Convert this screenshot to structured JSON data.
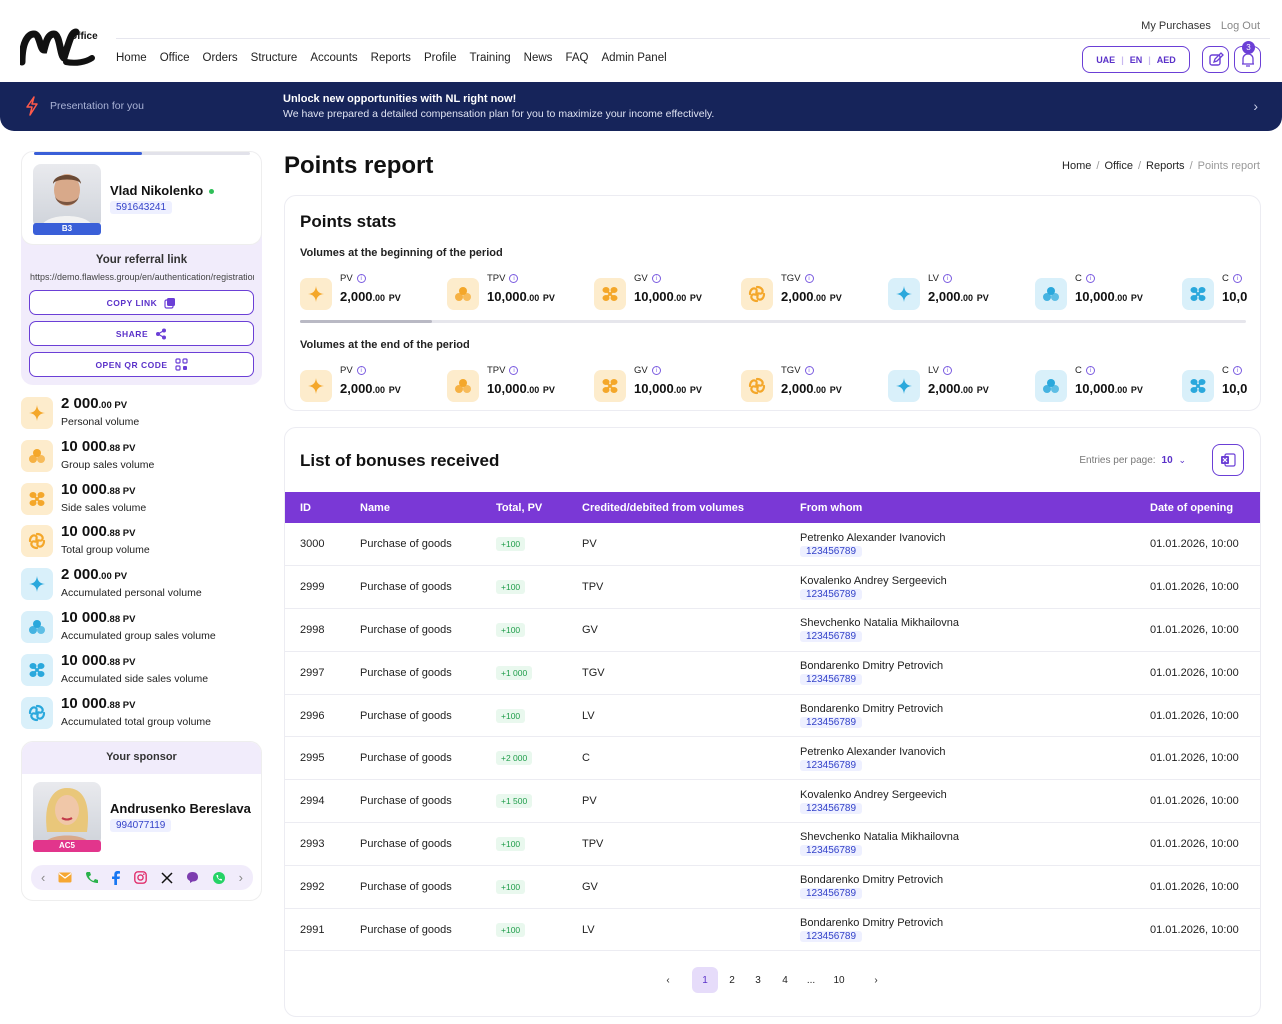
{
  "header": {
    "logo_text": "office",
    "top_links": [
      "My Purchases",
      "Log Out"
    ],
    "nav": [
      "Home",
      "Office",
      "Orders",
      "Structure",
      "Accounts",
      "Reports",
      "Profile",
      "Training",
      "News",
      "FAQ",
      "Admin Panel"
    ],
    "region": "UAE",
    "language": "EN",
    "currency": "AED",
    "notifications_count": "3"
  },
  "banner": {
    "presentation": "Presentation for you",
    "title": "Unlock new opportunities with NL right now!",
    "subtitle": "We have prepared a detailed compensation plan for you to maximize your income effectively."
  },
  "profile": {
    "name": "Vlad Nikolenko",
    "id": "591643241",
    "rank": "B3",
    "rank_color": "#3a5fd8",
    "progress": 0.5,
    "referral_label": "Your referral link",
    "referral_url": "https://demo.flawless.group/en/authentication/registration",
    "copy_label": "COPY LINK",
    "share_label": "SHARE",
    "qr_label": "OPEN QR CODE"
  },
  "volumes": [
    {
      "value": "2 000",
      "dec": ".00 PV",
      "label": "Personal volume",
      "icon": "sparkle-icon",
      "bg": "#fdeccc",
      "fg": "#f4a72a"
    },
    {
      "value": "10 000",
      "dec": ".88 PV",
      "label": "Group sales volume",
      "icon": "group-icon",
      "bg": "#fdeccc",
      "fg": "#f4a72a"
    },
    {
      "value": "10 000",
      "dec": ".88 PV",
      "label": "Side sales volume",
      "icon": "propeller-icon",
      "bg": "#fdeccc",
      "fg": "#f4a72a"
    },
    {
      "value": "10 000",
      "dec": ".88 PV",
      "label": "Total group volume",
      "icon": "swirl-icon",
      "bg": "#fdeccc",
      "fg": "#f4a72a"
    },
    {
      "value": "2 000",
      "dec": ".00 PV",
      "label": "Accumulated personal volume",
      "icon": "sparkle-icon",
      "bg": "#d9f0fa",
      "fg": "#2aa8dc"
    },
    {
      "value": "10 000",
      "dec": ".88 PV",
      "label": "Accumulated group sales volume",
      "icon": "group-icon",
      "bg": "#d9f0fa",
      "fg": "#2aa8dc"
    },
    {
      "value": "10 000",
      "dec": ".88 PV",
      "label": "Accumulated side sales volume",
      "icon": "propeller-icon",
      "bg": "#d9f0fa",
      "fg": "#2aa8dc"
    },
    {
      "value": "10 000",
      "dec": ".88 PV",
      "label": "Accumulated total group volume",
      "icon": "swirl-icon",
      "bg": "#d9f0fa",
      "fg": "#2aa8dc"
    }
  ],
  "sponsor": {
    "heading": "Your sponsor",
    "name": "Andrusenko Bereslava",
    "id": "994077119",
    "rank": "AC5",
    "rank_color": "#e2358c"
  },
  "page": {
    "title": "Points report",
    "breadcrumb": [
      "Home",
      "Office",
      "Reports",
      "Points report"
    ]
  },
  "stats": {
    "title": "Points stats",
    "begin_label": "Volumes at the beginning of the period",
    "end_label": "Volumes at the end of the period",
    "items": [
      {
        "label": "PV",
        "value": "2,000",
        "dec": ".00",
        "unit": "PV",
        "icon": "sparkle-icon",
        "bg": "#fdeccc",
        "fg": "#f4a72a"
      },
      {
        "label": "TPV",
        "value": "10,000",
        "dec": ".00",
        "unit": "PV",
        "icon": "group-icon",
        "bg": "#fdeccc",
        "fg": "#f4a72a"
      },
      {
        "label": "GV",
        "value": "10,000",
        "dec": ".00",
        "unit": "PV",
        "icon": "propeller-icon",
        "bg": "#fdeccc",
        "fg": "#f4a72a"
      },
      {
        "label": "TGV",
        "value": "2,000",
        "dec": ".00",
        "unit": "PV",
        "icon": "swirl-icon",
        "bg": "#fdeccc",
        "fg": "#f4a72a"
      },
      {
        "label": "LV",
        "value": "2,000",
        "dec": ".00",
        "unit": "PV",
        "icon": "sparkle-icon",
        "bg": "#d9f0fa",
        "fg": "#2aa8dc"
      },
      {
        "label": "C",
        "value": "10,000",
        "dec": ".00",
        "unit": "PV",
        "icon": "group-icon",
        "bg": "#d9f0fa",
        "fg": "#2aa8dc"
      },
      {
        "label": "C",
        "value": "10,0",
        "dec": "",
        "unit": "",
        "icon": "propeller-icon",
        "bg": "#d9f0fa",
        "fg": "#2aa8dc"
      }
    ]
  },
  "bonuses": {
    "title": "List of bonuses received",
    "per_page_label": "Entries per page:",
    "per_page": "10",
    "columns": [
      "ID",
      "Name",
      "Total, PV",
      "Credited/debited from volumes",
      "From whom",
      "Date of opening"
    ],
    "rows": [
      [
        "3000",
        "Purchase of goods",
        "+100",
        "PV",
        "Petrenko Alexander Ivanovich",
        "123456789",
        "01.01.2026, 10:00"
      ],
      [
        "2999",
        "Purchase of goods",
        "+100",
        "TPV",
        "Kovalenko Andrey Sergeevich",
        "123456789",
        "01.01.2026, 10:00"
      ],
      [
        "2998",
        "Purchase of goods",
        "+100",
        "GV",
        "Shevchenko Natalia Mikhailovna",
        "123456789",
        "01.01.2026, 10:00"
      ],
      [
        "2997",
        "Purchase of goods",
        "+1 000",
        "TGV",
        "Bondarenko Dmitry Petrovich",
        "123456789",
        "01.01.2026, 10:00"
      ],
      [
        "2996",
        "Purchase of goods",
        "+100",
        "LV",
        "Bondarenko Dmitry Petrovich",
        "123456789",
        "01.01.2026, 10:00"
      ],
      [
        "2995",
        "Purchase of goods",
        "+2 000",
        "C",
        "Petrenko Alexander Ivanovich",
        "123456789",
        "01.01.2026, 10:00"
      ],
      [
        "2994",
        "Purchase of goods",
        "+1 500",
        "PV",
        "Kovalenko Andrey Sergeevich",
        "123456789",
        "01.01.2026, 10:00"
      ],
      [
        "2993",
        "Purchase of goods",
        "+100",
        "TPV",
        "Shevchenko Natalia Mikhailovna",
        "123456789",
        "01.01.2026, 10:00"
      ],
      [
        "2992",
        "Purchase of goods",
        "+100",
        "GV",
        "Bondarenko Dmitry Petrovich",
        "123456789",
        "01.01.2026, 10:00"
      ],
      [
        "2991",
        "Purchase of goods",
        "+100",
        "LV",
        "Bondarenko Dmitry Petrovich",
        "123456789",
        "01.01.2026, 10:00"
      ]
    ]
  },
  "pagination": {
    "pages": [
      "1",
      "2",
      "3",
      "4",
      "...",
      "10"
    ],
    "current": "1"
  }
}
